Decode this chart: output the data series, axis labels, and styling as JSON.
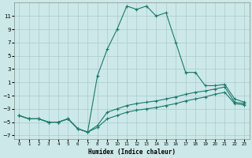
{
  "xlabel": "Humidex (Indice chaleur)",
  "background_color": "#cce8e8",
  "grid_color": "#aacccc",
  "line_color": "#1a7a6a",
  "series1_x": [
    0,
    1,
    2,
    3,
    4,
    5,
    6,
    7,
    8,
    9,
    10,
    11,
    12,
    13,
    14,
    15,
    16,
    17,
    18,
    19,
    20,
    21,
    22,
    23
  ],
  "series1_y": [
    -4,
    -4.5,
    -4.5,
    -5,
    -5,
    -4.5,
    -6,
    -6.5,
    2,
    6,
    9,
    12.5,
    12,
    12.5,
    11,
    11.5,
    7,
    2.5,
    2.5,
    0.5,
    0.5,
    0.7,
    -1.5,
    -2
  ],
  "series2_x": [
    0,
    1,
    2,
    3,
    4,
    5,
    6,
    7,
    8,
    9,
    10,
    11,
    12,
    13,
    14,
    15,
    16,
    17,
    18,
    19,
    20,
    21,
    22,
    23
  ],
  "series2_y": [
    -4,
    -4.5,
    -4.5,
    -5,
    -5,
    -4.5,
    -6,
    -6.5,
    -5.5,
    -3.5,
    -3,
    -2.5,
    -2.2,
    -2,
    -1.8,
    -1.5,
    -1.2,
    -0.8,
    -0.5,
    -0.3,
    0.0,
    0.3,
    -2,
    -2.2
  ],
  "series3_x": [
    0,
    1,
    2,
    3,
    4,
    5,
    6,
    7,
    8,
    9,
    10,
    11,
    12,
    13,
    14,
    15,
    16,
    17,
    18,
    19,
    20,
    21,
    22,
    23
  ],
  "series3_y": [
    -4,
    -4.5,
    -4.5,
    -5,
    -5,
    -4.5,
    -6,
    -6.5,
    -5.8,
    -4.5,
    -4.0,
    -3.5,
    -3.2,
    -3.0,
    -2.8,
    -2.5,
    -2.2,
    -1.8,
    -1.5,
    -1.2,
    -0.8,
    -0.5,
    -2.2,
    -2.4
  ],
  "xlim": [
    -0.5,
    23.5
  ],
  "ylim": [
    -7.5,
    13
  ],
  "yticks": [
    -7,
    -5,
    -3,
    -1,
    1,
    3,
    5,
    7,
    9,
    11
  ],
  "xticks": [
    0,
    1,
    2,
    3,
    4,
    5,
    6,
    7,
    8,
    9,
    10,
    11,
    12,
    13,
    14,
    15,
    16,
    17,
    18,
    19,
    20,
    21,
    22,
    23
  ]
}
